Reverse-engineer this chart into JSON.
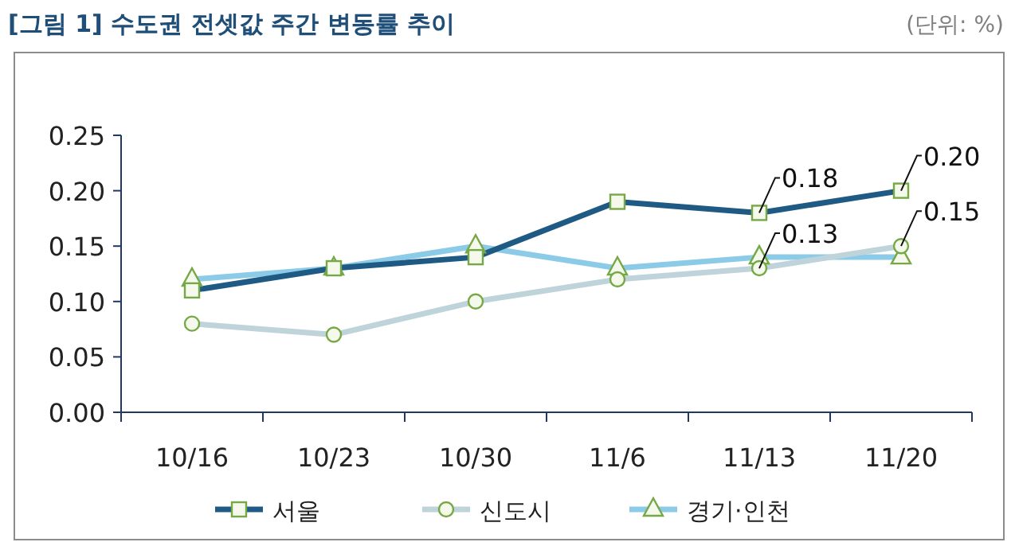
{
  "chart_data": {
    "type": "line",
    "title": "[그림 1] 수도권 전셋값 주간 변동률 추이",
    "categories": [
      "10/16",
      "10/23",
      "10/30",
      "11/6",
      "11/13",
      "11/20"
    ],
    "series": [
      {
        "name": "서울",
        "color": "#1f5a85",
        "marker": "square",
        "values": [
          0.11,
          0.13,
          0.14,
          0.19,
          0.18,
          0.2
        ]
      },
      {
        "name": "신도시",
        "color": "#bfd3da",
        "marker": "circle",
        "values": [
          0.08,
          0.07,
          0.1,
          0.12,
          0.13,
          0.15
        ]
      },
      {
        "name": "경기·인천",
        "color": "#8ccbe8",
        "marker": "triangle",
        "values": [
          0.12,
          0.13,
          0.15,
          0.13,
          0.14,
          0.14
        ]
      }
    ],
    "ylim": [
      0,
      0.25
    ],
    "yticks": [
      {
        "value": 0,
        "label": "0.00"
      },
      {
        "value": 0.05,
        "label": "0.05"
      },
      {
        "value": 0.1,
        "label": "0.10"
      },
      {
        "value": 0.15,
        "label": "0.15"
      },
      {
        "value": 0.2,
        "label": "0.20"
      },
      {
        "value": 0.25,
        "label": "0.25"
      }
    ],
    "grid": false,
    "legend": "bottom",
    "line_style": "solid",
    "annotations": [
      "(단위: %)",
      {
        "text": "0.18",
        "x": "11/13",
        "y": 0.18
      },
      {
        "text": "0.20",
        "x": "11/20",
        "y": 0.2
      },
      {
        "text": "0.13",
        "x": "11/13",
        "y": 0.13
      },
      {
        "text": "0.15",
        "x": "11/20",
        "y": 0.15
      }
    ]
  }
}
